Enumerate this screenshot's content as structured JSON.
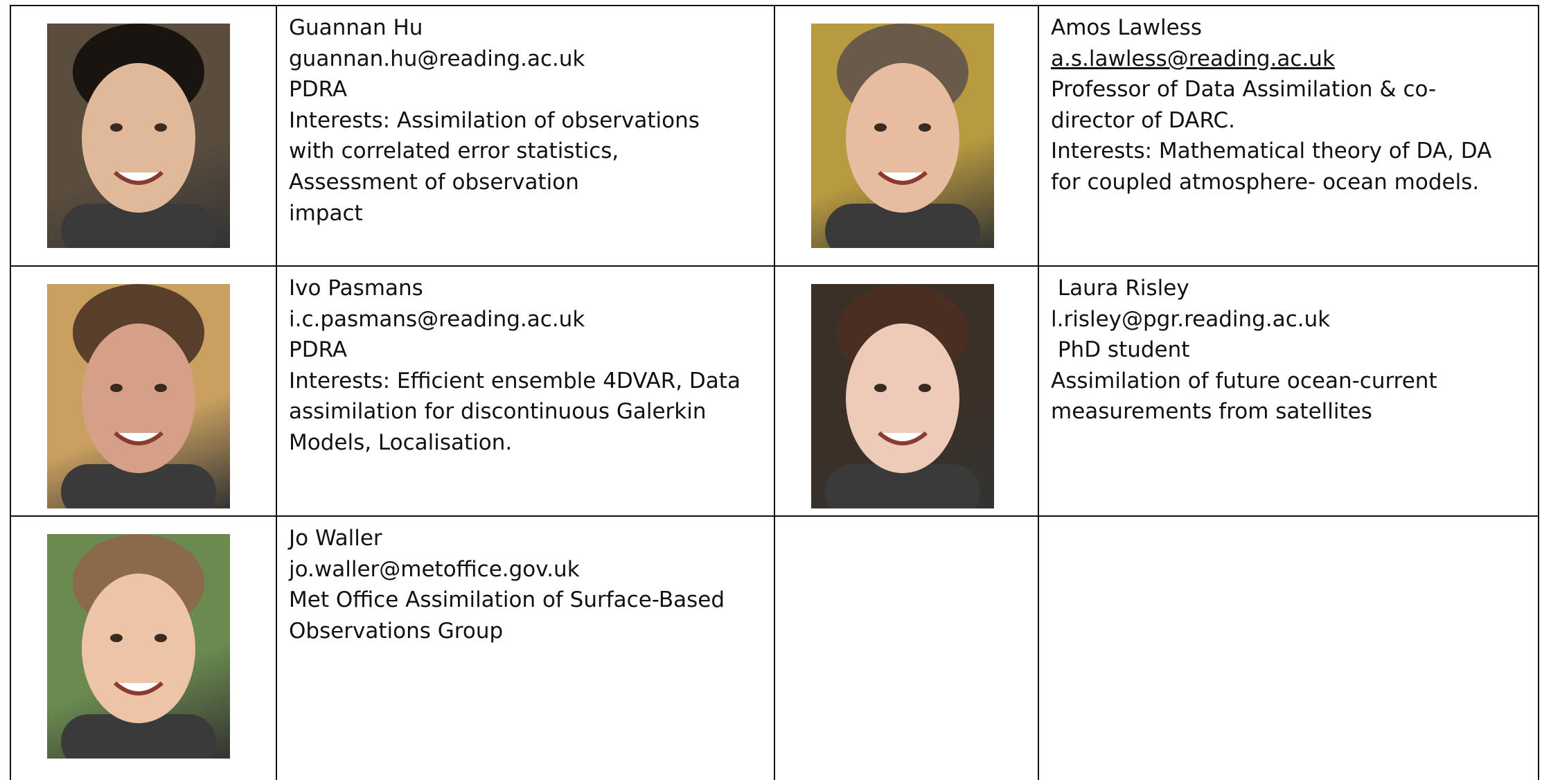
{
  "people": [
    {
      "lines": [
        "Guannan Hu",
        "guannan.hu@reading.ac.uk",
        "PDRA",
        "Interests: Assimilation of observations",
        "with correlated error statistics,",
        "Assessment of observation",
        "impact"
      ]
    },
    {
      "lines": [
        "Amos Lawless",
        "a.s.lawless@reading.ac.uk",
        "Professor of Data Assimilation & co-",
        "director of DARC.",
        "Interests: Mathematical theory of DA, DA",
        "for coupled atmosphere- ocean models."
      ],
      "underlined_line": 1
    },
    {
      "lines": [
        "Ivo Pasmans",
        "i.c.pasmans@reading.ac.uk",
        "PDRA",
        "Interests: Efficient ensemble 4DVAR, Data",
        "assimilation for discontinuous Galerkin",
        "Models, Localisation."
      ]
    },
    {
      "lines": [
        " Laura Risley",
        "l.risley@pgr.reading.ac.uk",
        " PhD student",
        "Assimilation of future ocean-current",
        "measurements from satellites"
      ]
    },
    {
      "lines": [
        "Jo Waller",
        "jo.waller@metoffice.gov.uk",
        "Met Office Assimilation of Surface-Based",
        "Observations Group"
      ]
    }
  ]
}
